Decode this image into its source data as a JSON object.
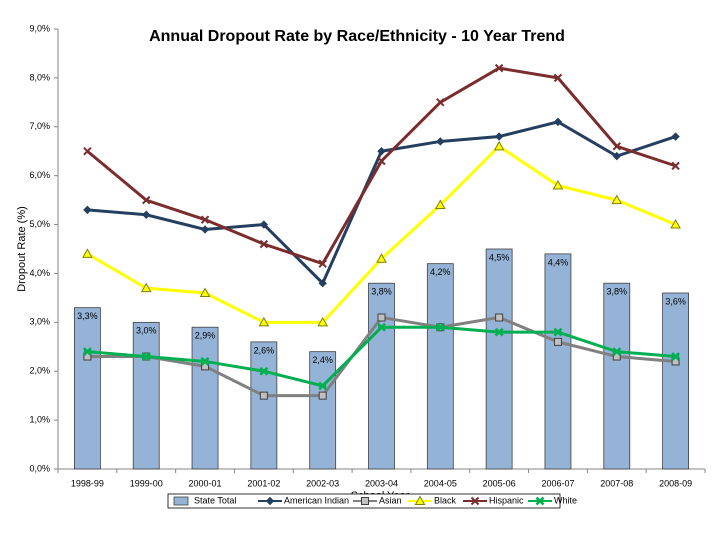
{
  "chart_data": {
    "type": "combo",
    "title": "Annual Dropout Rate by Race/Ethnicity - 10 Year Trend",
    "x_label": "School Year",
    "y_label": "Dropout Rate (%)",
    "categories": [
      "1998-99",
      "1999-00",
      "2000-01",
      "2001-02",
      "2002-03",
      "2003-04",
      "2004-05",
      "2005-06",
      "2006-07",
      "2007-08",
      "2008-09"
    ],
    "ylim": [
      0,
      9
    ],
    "yticks": [
      {
        "value": 0,
        "label": "0,0%"
      },
      {
        "value": 1,
        "label": "1,0%"
      },
      {
        "value": 2,
        "label": "2,0%"
      },
      {
        "value": 3,
        "label": "3,0%"
      },
      {
        "value": 4,
        "label": "4,0%"
      },
      {
        "value": 5,
        "label": "5,0%"
      },
      {
        "value": 6,
        "label": "6,0%"
      },
      {
        "value": 7,
        "label": "7,0%"
      },
      {
        "value": 8,
        "label": "8,0%"
      },
      {
        "value": 9,
        "label": "9,0%"
      }
    ],
    "legend": "bottom",
    "series": [
      {
        "name": "State Total",
        "type": "bar",
        "color": "#95b3d7",
        "values": [
          3.3,
          3.0,
          2.9,
          2.6,
          2.4,
          3.8,
          4.2,
          4.5,
          4.4,
          3.8,
          3.6
        ],
        "value_labels": [
          "3,3%",
          "3,0%",
          "2,9%",
          "2,6%",
          "2,4%",
          "3,8%",
          "4,2%",
          "4,5%",
          "4,4%",
          "3,8%",
          "3,6%"
        ]
      },
      {
        "name": "American Indian",
        "type": "line",
        "marker": "diamond",
        "color": "#243f60",
        "values": [
          5.3,
          5.2,
          4.9,
          5.0,
          3.8,
          6.5,
          6.7,
          6.8,
          7.1,
          6.4,
          6.8
        ]
      },
      {
        "name": "Asian",
        "type": "line",
        "marker": "square",
        "color": "#808080",
        "values": [
          2.3,
          2.3,
          2.1,
          1.5,
          1.5,
          3.1,
          2.9,
          3.1,
          2.6,
          2.3,
          2.2
        ]
      },
      {
        "name": "Black",
        "type": "line",
        "marker": "triangle",
        "color": "#ffff00",
        "values": [
          4.4,
          3.7,
          3.6,
          3.0,
          3.0,
          4.3,
          5.4,
          6.6,
          5.8,
          5.5,
          5.0
        ]
      },
      {
        "name": "Hispanic",
        "type": "line",
        "marker": "cross",
        "color": "#7b2c2c",
        "values": [
          6.5,
          5.5,
          5.1,
          4.6,
          4.2,
          6.3,
          7.5,
          8.2,
          8.0,
          6.6,
          6.2
        ]
      },
      {
        "name": "White",
        "type": "line",
        "marker": "star",
        "color": "#00b050",
        "values": [
          2.4,
          2.3,
          2.2,
          2.0,
          1.7,
          2.9,
          2.9,
          2.8,
          2.8,
          2.4,
          2.3
        ]
      }
    ]
  }
}
